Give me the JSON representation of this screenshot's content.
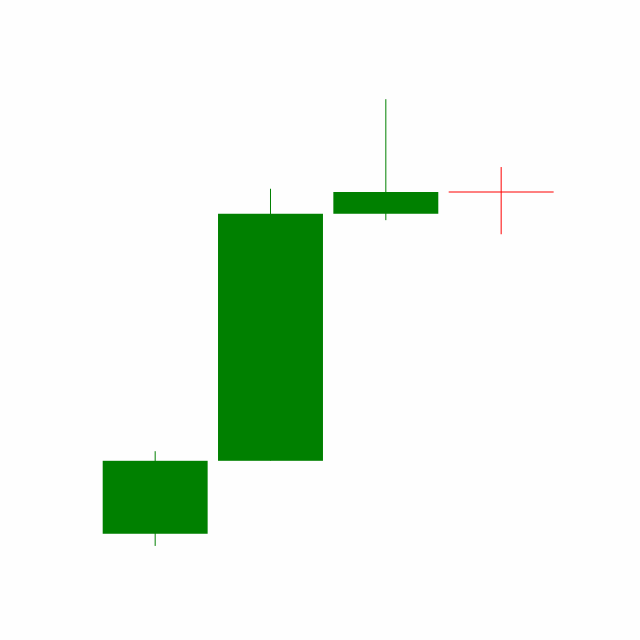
{
  "chart_data": {
    "type": "candlestick",
    "categories": [
      null,
      null,
      null,
      null
    ],
    "open": [
      16.6,
      28,
      66.6,
      70
    ],
    "close": [
      28,
      66.6,
      70,
      70
    ],
    "high": [
      29.5,
      70.5,
      84.5,
      73.9
    ],
    "low": [
      14.7,
      28,
      65.6,
      63.4
    ],
    "up_color": "#008000",
    "down_color": "#ff0000",
    "ylim": [
      0,
      100
    ]
  }
}
